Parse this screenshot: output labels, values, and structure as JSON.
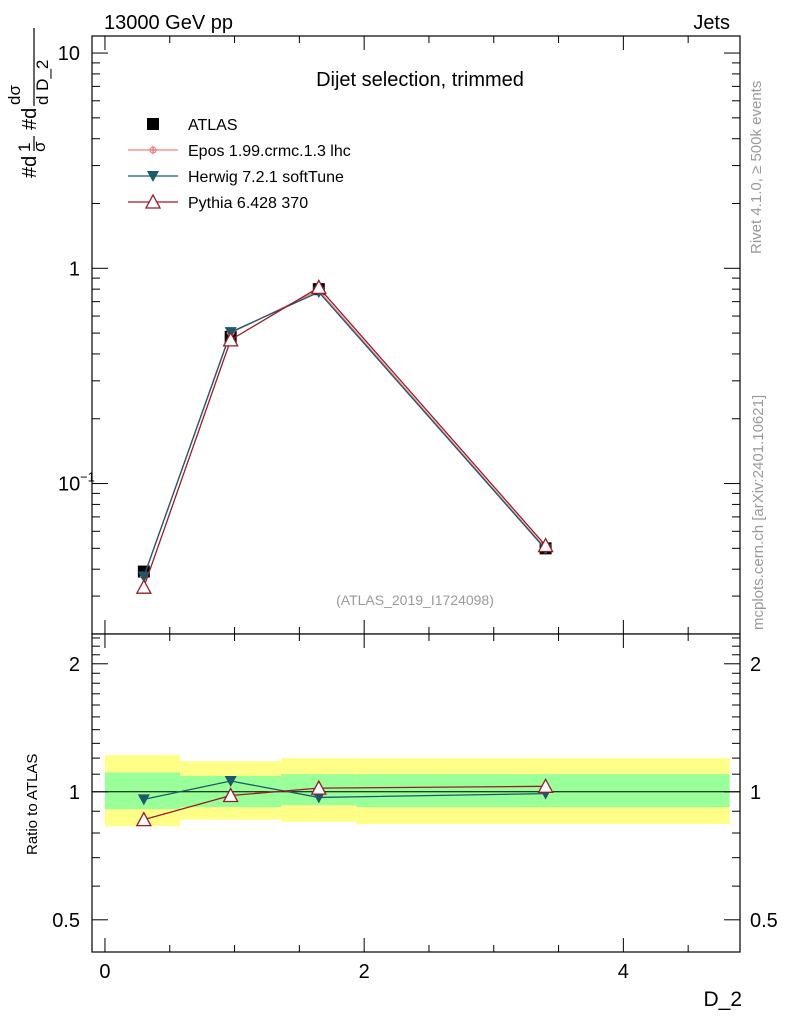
{
  "header": {
    "left": "13000 GeV pp",
    "right": "Jets"
  },
  "side_labels": {
    "rivet": "Rivet 4.1.0, ≥ 500k events",
    "site": "mcplots.cern.ch [arXiv:2401.10621]"
  },
  "colors": {
    "data": "#000000",
    "epos": "#f08080",
    "herwig": "#1a5a6a",
    "pythia": "#9b1a2a",
    "band_inner": "#99ff99",
    "band_outer": "#ffff88"
  },
  "chart_data": [
    {
      "type": "line",
      "title": "Dijet selection, trimmed",
      "ylabel": "#d1/σ #d dσ/d D_2",
      "yscale": "log",
      "ylim": [
        0.02,
        12
      ],
      "xlim": [
        -0.1,
        4.9
      ],
      "yticks": [
        {
          "value": 0.1,
          "label": "10",
          "exp": "−1"
        },
        {
          "value": 1,
          "label": "1",
          "exp": ""
        },
        {
          "value": 10,
          "label": "10",
          "exp": ""
        }
      ],
      "watermark": "(ATLAS_2019_I1724098)",
      "legend_position": "top-left",
      "series": [
        {
          "name": "ATLAS",
          "marker": "square",
          "x": [
            0.3,
            0.97,
            1.65,
            3.4
          ],
          "y": [
            0.039,
            0.48,
            0.8,
            0.05
          ]
        },
        {
          "name": "Epos 1.99.crmc.1.3 lhc",
          "marker": "cross",
          "x": [
            0.3,
            0.97,
            1.65,
            3.4
          ],
          "y": [
            0.037,
            0.5,
            0.79,
            0.05
          ]
        },
        {
          "name": "Herwig 7.2.1 softTune",
          "marker": "triangle-down",
          "x": [
            0.3,
            0.97,
            1.65,
            3.4
          ],
          "y": [
            0.037,
            0.505,
            0.775,
            0.0495
          ]
        },
        {
          "name": "Pythia 6.428 370",
          "marker": "triangle-up",
          "x": [
            0.3,
            0.97,
            1.65,
            3.4
          ],
          "y": [
            0.033,
            0.465,
            0.815,
            0.0515
          ]
        }
      ]
    },
    {
      "type": "line",
      "title": "",
      "ylabel": "Ratio to ATLAS",
      "xlabel": "D_2",
      "yscale": "log",
      "ylim": [
        0.42,
        2.35
      ],
      "xlim": [
        -0.1,
        4.9
      ],
      "xticks": [
        {
          "value": 0,
          "label": "0"
        },
        {
          "value": 2,
          "label": "2"
        },
        {
          "value": 4,
          "label": "4"
        }
      ],
      "yticks": [
        {
          "value": 0.5,
          "label": "0.5"
        },
        {
          "value": 1,
          "label": "1"
        },
        {
          "value": 2,
          "label": "2"
        }
      ],
      "bands": [
        {
          "x0": 0.0,
          "x1": 0.58,
          "inner": [
            0.91,
            1.11
          ],
          "outer": [
            0.83,
            1.22
          ]
        },
        {
          "x0": 0.58,
          "x1": 1.36,
          "inner": [
            0.92,
            1.09
          ],
          "outer": [
            0.86,
            1.18
          ]
        },
        {
          "x0": 1.36,
          "x1": 1.94,
          "inner": [
            0.93,
            1.1
          ],
          "outer": [
            0.85,
            1.2
          ]
        },
        {
          "x0": 1.94,
          "x1": 4.82,
          "inner": [
            0.92,
            1.1
          ],
          "outer": [
            0.84,
            1.2
          ]
        }
      ],
      "series": [
        {
          "name": "Herwig 7.2.1 softTune",
          "marker": "triangle-down",
          "x": [
            0.3,
            0.97,
            1.65,
            3.4
          ],
          "y": [
            0.96,
            1.06,
            0.97,
            0.99
          ]
        },
        {
          "name": "Pythia 6.428 370",
          "marker": "triangle-up",
          "x": [
            0.3,
            0.97,
            1.65,
            3.4
          ],
          "y": [
            0.86,
            0.98,
            1.02,
            1.03
          ]
        }
      ]
    }
  ]
}
